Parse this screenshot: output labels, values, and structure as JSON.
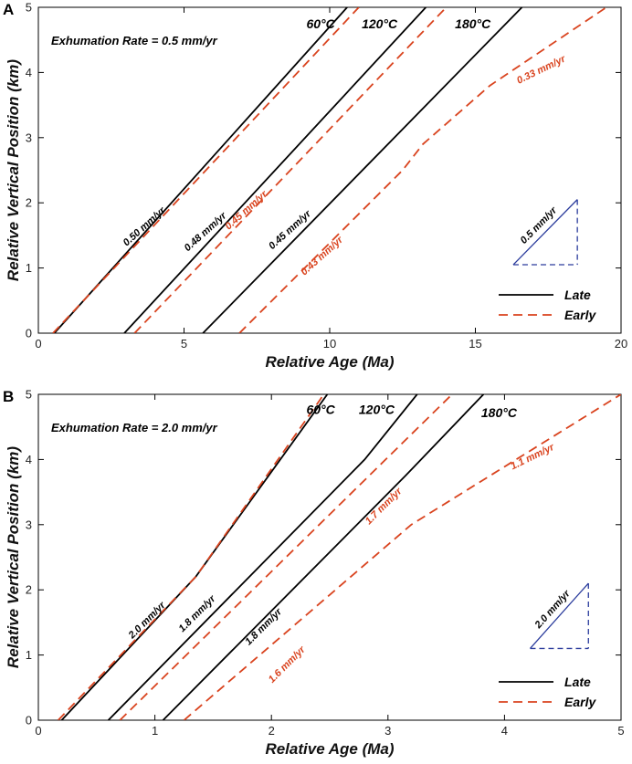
{
  "colors": {
    "late": "#000000",
    "early": "#d9431e",
    "scale_triangle": "#2a3b9c"
  },
  "chart_data": [
    {
      "type": "line",
      "panel": "A",
      "title": "Exhumation Rate = 0.5 mm/yr",
      "xlabel": "Relative Age (Ma)",
      "ylabel": "Relative Vertical Position (km)",
      "xlim": [
        0,
        20
      ],
      "ylim": [
        0,
        5
      ],
      "xticks": [
        0,
        5,
        10,
        15,
        20
      ],
      "yticks": [
        0,
        1,
        2,
        3,
        4,
        5
      ],
      "legend": {
        "position": "bottom-right",
        "entries": [
          {
            "label": "Late",
            "style": "solid"
          },
          {
            "label": "Early",
            "style": "dashed"
          }
        ]
      },
      "series": [
        {
          "name": "60°C Late",
          "style": "late",
          "points": [
            [
              0.55,
              0
            ],
            [
              10.6,
              5
            ]
          ]
        },
        {
          "name": "60°C Early",
          "style": "early",
          "points": [
            [
              0.5,
              0
            ],
            [
              11.0,
              5
            ]
          ]
        },
        {
          "name": "120°C Late",
          "style": "late",
          "points": [
            [
              2.95,
              0
            ],
            [
              13.3,
              5
            ]
          ]
        },
        {
          "name": "120°C Early",
          "style": "early",
          "points": [
            [
              3.3,
              0
            ],
            [
              14.0,
              5
            ]
          ]
        },
        {
          "name": "180°C Late",
          "style": "late",
          "points": [
            [
              5.65,
              0
            ],
            [
              16.6,
              5
            ]
          ]
        },
        {
          "name": "180°C Early",
          "style": "early",
          "points": [
            [
              6.9,
              0
            ],
            [
              12.5,
              2.5
            ],
            [
              13.2,
              2.9
            ],
            [
              15.5,
              3.8
            ],
            [
              19.5,
              5
            ]
          ]
        }
      ],
      "isotherm_labels": [
        {
          "text": "60°C",
          "x": 9.2,
          "y": 4.68
        },
        {
          "text": "120°C",
          "x": 11.1,
          "y": 4.68
        },
        {
          "text": "180°C",
          "x": 14.3,
          "y": 4.68
        }
      ],
      "rate_labels": [
        {
          "text": "0.50 mm/yr",
          "x": 3.7,
          "y": 1.6,
          "angle": -42,
          "color": "late"
        },
        {
          "text": "0.48 mm/yr",
          "x": 5.8,
          "y": 1.52,
          "angle": -42,
          "color": "late"
        },
        {
          "text": "0.45 mm/yr",
          "x": 7.2,
          "y": 1.85,
          "angle": -42,
          "color": "early"
        },
        {
          "text": "0.45 mm/yr",
          "x": 8.7,
          "y": 1.55,
          "angle": -42,
          "color": "late"
        },
        {
          "text": "0.43 mm/yr",
          "x": 9.8,
          "y": 1.15,
          "angle": -42,
          "color": "early"
        },
        {
          "text": "0.33 mm/yr",
          "x": 17.3,
          "y": 4.0,
          "angle": -26,
          "color": "early"
        }
      ],
      "scale_triangle": {
        "label": "0.5 mm/yr",
        "x0": 16.3,
        "x1": 18.5,
        "y0": 1.05,
        "y1": 2.05
      }
    },
    {
      "type": "line",
      "panel": "B",
      "title": "Exhumation Rate = 2.0 mm/yr",
      "xlabel": "Relative Age (Ma)",
      "ylabel": "Relative Vertical Position (km)",
      "xlim": [
        0,
        5
      ],
      "ylim": [
        0,
        5
      ],
      "xticks": [
        0,
        1,
        2,
        3,
        4,
        5
      ],
      "yticks": [
        0,
        1,
        2,
        3,
        4,
        5
      ],
      "legend": {
        "position": "bottom-right",
        "entries": [
          {
            "label": "Late",
            "style": "solid"
          },
          {
            "label": "Early",
            "style": "dashed"
          }
        ]
      },
      "series": [
        {
          "name": "60°C Late",
          "style": "late",
          "points": [
            [
              0.2,
              0
            ],
            [
              1.35,
              2.2
            ],
            [
              2.48,
              5
            ]
          ]
        },
        {
          "name": "60°C Early",
          "style": "early",
          "points": [
            [
              0.17,
              0
            ],
            [
              1.35,
              2.2
            ],
            [
              2.45,
              5
            ]
          ]
        },
        {
          "name": "120°C Late",
          "style": "late",
          "points": [
            [
              0.6,
              0
            ],
            [
              2.8,
              4.0
            ],
            [
              3.25,
              5
            ]
          ]
        },
        {
          "name": "120°C Early",
          "style": "early",
          "points": [
            [
              0.7,
              0
            ],
            [
              3.55,
              5
            ]
          ]
        },
        {
          "name": "180°C Late",
          "style": "late",
          "points": [
            [
              1.07,
              0
            ],
            [
              3.15,
              3.75
            ],
            [
              3.82,
              5
            ]
          ]
        },
        {
          "name": "180°C Early",
          "style": "early",
          "points": [
            [
              1.25,
              0
            ],
            [
              3.2,
              3.0
            ],
            [
              5.0,
              5
            ]
          ]
        }
      ],
      "isotherm_labels": [
        {
          "text": "60°C",
          "x": 2.3,
          "y": 4.7
        },
        {
          "text": "120°C",
          "x": 2.75,
          "y": 4.7
        },
        {
          "text": "180°C",
          "x": 3.8,
          "y": 4.65
        }
      ],
      "rate_labels": [
        {
          "text": "2.0 mm/yr",
          "x": 0.95,
          "y": 1.5,
          "angle": -45,
          "color": "late"
        },
        {
          "text": "1.8 mm/yr",
          "x": 1.38,
          "y": 1.6,
          "angle": -45,
          "color": "late"
        },
        {
          "text": "1.8 mm/yr",
          "x": 1.95,
          "y": 1.4,
          "angle": -45,
          "color": "late"
        },
        {
          "text": "1.7 mm/yr",
          "x": 2.98,
          "y": 3.25,
          "angle": -45,
          "color": "early"
        },
        {
          "text": "1.6 mm/yr",
          "x": 2.15,
          "y": 0.82,
          "angle": -45,
          "color": "early"
        },
        {
          "text": "1.1 mm/yr",
          "x": 4.25,
          "y": 4.0,
          "angle": -26,
          "color": "early"
        }
      ],
      "scale_triangle": {
        "label": "2.0 mm/yr",
        "x0": 4.22,
        "x1": 4.72,
        "y0": 1.1,
        "y1": 2.1
      }
    }
  ]
}
